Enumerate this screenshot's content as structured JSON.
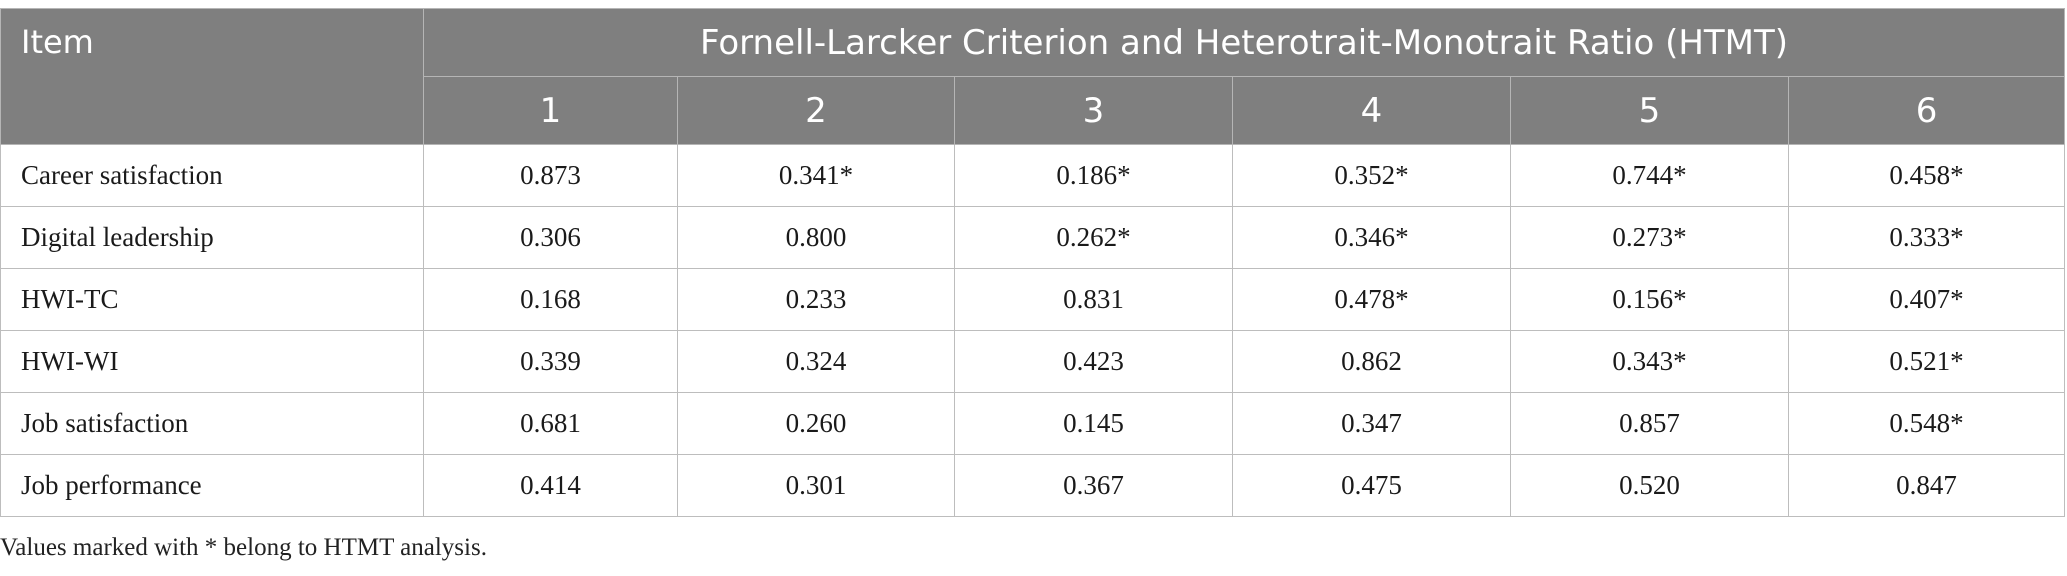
{
  "table": {
    "item_header": "Item",
    "group_header": "Fornell-Larcker Criterion and Heterotrait-Monotrait Ratio (HTMT)",
    "columns": [
      "1",
      "2",
      "3",
      "4",
      "5",
      "6"
    ],
    "rows": [
      {
        "label": "Career satisfaction",
        "values": [
          "0.873",
          "0.341*",
          "0.186*",
          "0.352*",
          "0.744*",
          "0.458*"
        ]
      },
      {
        "label": "Digital leadership",
        "values": [
          "0.306",
          "0.800",
          "0.262*",
          "0.346*",
          "0.273*",
          "0.333*"
        ]
      },
      {
        "label": "HWI-TC",
        "values": [
          "0.168",
          "0.233",
          "0.831",
          "0.478*",
          "0.156*",
          "0.407*"
        ]
      },
      {
        "label": "HWI-WI",
        "values": [
          "0.339",
          "0.324",
          "0.423",
          "0.862",
          "0.343*",
          "0.521*"
        ]
      },
      {
        "label": "Job satisfaction",
        "values": [
          "0.681",
          "0.260",
          "0.145",
          "0.347",
          "0.857",
          "0.548*"
        ]
      },
      {
        "label": "Job performance",
        "values": [
          "0.414",
          "0.301",
          "0.367",
          "0.475",
          "0.520",
          "0.847"
        ]
      }
    ]
  },
  "footnote": "Values marked with * belong to HTMT analysis.",
  "colors": {
    "header_bg": "#7f7f7f",
    "header_text": "#ffffff",
    "border": "#bdbdbd"
  }
}
